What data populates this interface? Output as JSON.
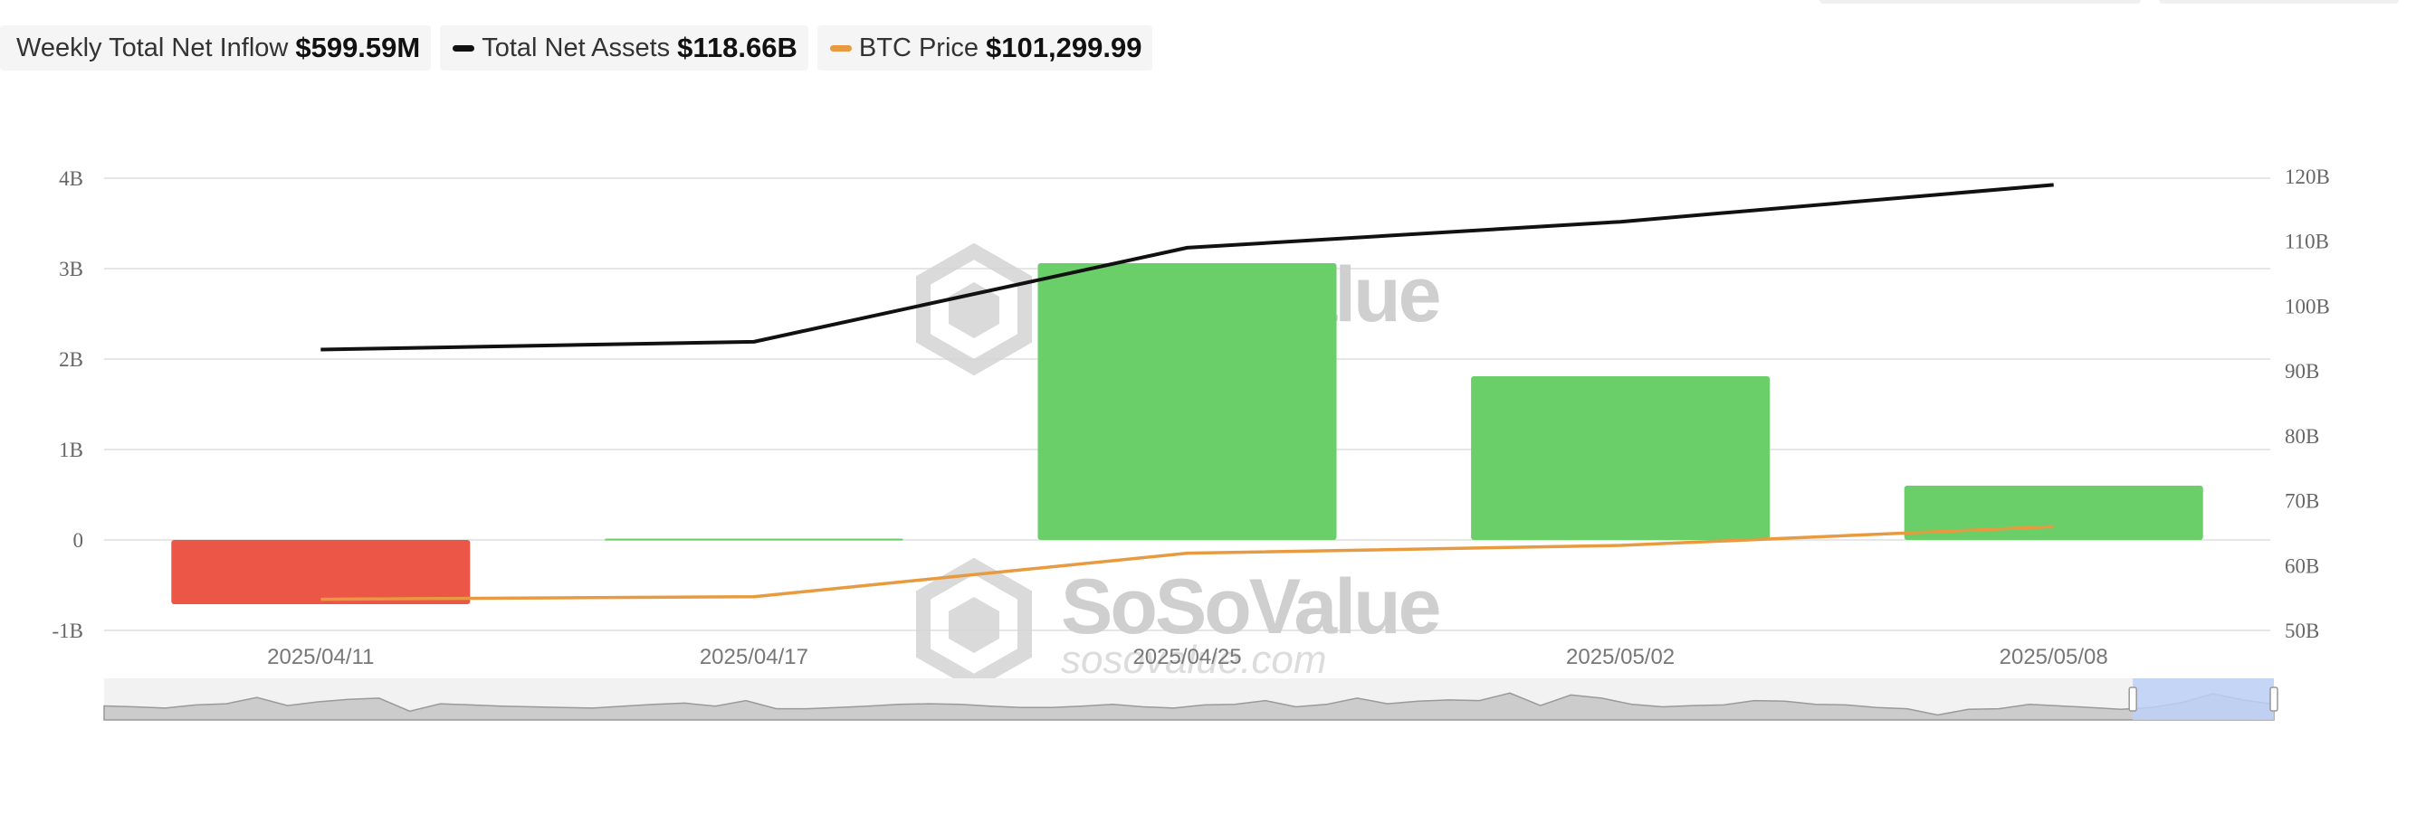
{
  "legend": {
    "inflow_label": "Weekly Total Net Inflow",
    "inflow_value": "$599.59M",
    "assets_label": "Total Net Assets",
    "assets_value": "$118.66B",
    "btc_label": "BTC Price",
    "btc_value": "$101,299.99"
  },
  "watermark": {
    "brand": "SoSoValue",
    "url": "sosovalue.com"
  },
  "colors": {
    "positive_bar": "#6ace69",
    "negative_bar": "#ec5646",
    "assets_line": "#111111",
    "btc_line": "#e79a3f",
    "navigator_window": "#bdd0f7"
  },
  "chart_data": {
    "type": "bar",
    "title": "",
    "categories": [
      "2025/04/11",
      "2025/04/17",
      "2025/04/25",
      "2025/05/02",
      "2025/05/08"
    ],
    "series": [
      {
        "name": "Weekly Total Net Inflow",
        "type": "bar",
        "axis": "left",
        "values": [
          -0.71,
          0.015,
          3.06,
          1.81,
          0.6
        ]
      },
      {
        "name": "Total Net Assets",
        "type": "line",
        "axis": "right",
        "values": [
          93.3,
          94.5,
          109.0,
          113.0,
          118.7
        ]
      },
      {
        "name": "BTC Price",
        "type": "line",
        "axis": "right",
        "values": [
          54.8,
          55.2,
          61.9,
          63.1,
          66.0
        ]
      }
    ],
    "left_axis": {
      "ticks": [
        "4B",
        "3B",
        "2B",
        "1B",
        "0",
        "-1B"
      ],
      "range": [
        -1,
        4
      ]
    },
    "right_axis": {
      "ticks": [
        "120B",
        "110B",
        "100B",
        "90B",
        "80B",
        "70B",
        "60B",
        "50B"
      ],
      "range": [
        50,
        120
      ]
    },
    "navigator": {
      "profile": [
        0.45,
        0.42,
        0.38,
        0.48,
        0.52,
        0.72,
        0.46,
        0.58,
        0.66,
        0.7,
        0.28,
        0.52,
        0.48,
        0.44,
        0.42,
        0.4,
        0.38,
        0.44,
        0.5,
        0.54,
        0.44,
        0.62,
        0.36,
        0.36,
        0.4,
        0.44,
        0.5,
        0.52,
        0.5,
        0.44,
        0.4,
        0.4,
        0.44,
        0.5,
        0.42,
        0.38,
        0.48,
        0.5,
        0.62,
        0.42,
        0.5,
        0.7,
        0.52,
        0.6,
        0.64,
        0.62,
        0.86,
        0.46,
        0.8,
        0.7,
        0.5,
        0.42,
        0.46,
        0.48,
        0.62,
        0.6,
        0.5,
        0.48,
        0.4,
        0.36,
        0.16,
        0.34,
        0.36,
        0.5,
        0.45,
        0.4,
        0.34,
        0.4,
        0.56,
        0.84,
        0.64,
        0.5
      ],
      "window_start": 0.935,
      "window_end": 1.0
    }
  }
}
